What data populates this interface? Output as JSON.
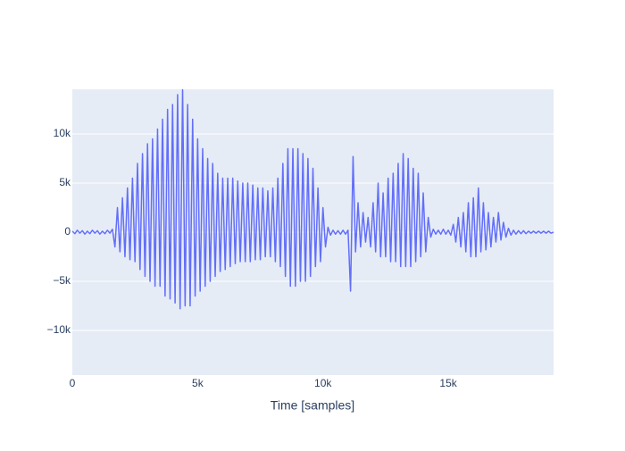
{
  "chart_data": {
    "type": "line",
    "x_label": "Time [samples]",
    "xlim": [
      0,
      19200
    ],
    "ylim": [
      -14545,
      14545
    ],
    "xticks": [
      0,
      {
        "value": 5000,
        "label": "5k"
      },
      {
        "value": 10000,
        "label": "10k"
      },
      {
        "value": 15000,
        "label": "15k"
      }
    ],
    "yticks": [
      {
        "value": -10000,
        "label": "−10k"
      },
      {
        "value": -5000,
        "label": "−5k"
      },
      0,
      {
        "value": 5000,
        "label": "5k"
      },
      {
        "value": 10000,
        "label": "10k"
      }
    ],
    "grid": true,
    "series": [
      {
        "color": "#636efa",
        "x": [
          0,
          100,
          200,
          300,
          400,
          500,
          600,
          700,
          800,
          900,
          1000,
          1100,
          1200,
          1300,
          1400,
          1500,
          1600,
          1700,
          1800,
          1900,
          2000,
          2100,
          2200,
          2300,
          2400,
          2500,
          2600,
          2700,
          2800,
          2900,
          3000,
          3100,
          3200,
          3300,
          3400,
          3500,
          3600,
          3700,
          3800,
          3900,
          4000,
          4100,
          4200,
          4300,
          4400,
          4500,
          4600,
          4700,
          4800,
          4900,
          5000,
          5100,
          5200,
          5300,
          5400,
          5500,
          5600,
          5700,
          5800,
          5900,
          6000,
          6100,
          6200,
          6300,
          6400,
          6500,
          6600,
          6700,
          6800,
          6900,
          7000,
          7100,
          7200,
          7300,
          7400,
          7500,
          7600,
          7700,
          7800,
          7900,
          8000,
          8100,
          8200,
          8300,
          8400,
          8500,
          8600,
          8700,
          8800,
          8900,
          9000,
          9100,
          9200,
          9300,
          9400,
          9500,
          9600,
          9700,
          9800,
          9900,
          10000,
          10100,
          10200,
          10300,
          10400,
          10500,
          10600,
          10700,
          10800,
          10900,
          11000,
          11100,
          11200,
          11300,
          11400,
          11500,
          11600,
          11700,
          11800,
          11900,
          12000,
          12100,
          12200,
          12300,
          12400,
          12500,
          12600,
          12700,
          12800,
          12900,
          13000,
          13100,
          13200,
          13300,
          13400,
          13500,
          13600,
          13700,
          13800,
          13900,
          14000,
          14100,
          14200,
          14300,
          14400,
          14500,
          14600,
          14700,
          14800,
          14900,
          15000,
          15100,
          15200,
          15300,
          15400,
          15500,
          15600,
          15700,
          15800,
          15900,
          16000,
          16100,
          16200,
          16300,
          16400,
          16500,
          16600,
          16700,
          16800,
          16900,
          17000,
          17100,
          17200,
          17300,
          17400,
          17500,
          17600,
          17700,
          17800,
          17900,
          18000,
          18100,
          18200,
          18300,
          18400,
          18500,
          18600,
          18700,
          18800,
          18900,
          19000,
          19100,
          19200
        ],
        "values": [
          100,
          -150,
          200,
          -100,
          150,
          -200,
          100,
          -150,
          200,
          -100,
          150,
          -200,
          100,
          -150,
          200,
          -100,
          300,
          -1500,
          2500,
          -2000,
          3500,
          -2500,
          4500,
          -2800,
          5500,
          -3000,
          7000,
          -3800,
          8000,
          -4500,
          9000,
          -5000,
          9500,
          -5500,
          10500,
          -5500,
          11500,
          -6500,
          12500,
          -6800,
          13000,
          -7200,
          14000,
          -7800,
          14500,
          -7500,
          13000,
          -7500,
          11500,
          -6500,
          9500,
          -6000,
          8500,
          -5500,
          7500,
          -5000,
          7000,
          -4500,
          6000,
          -4000,
          5500,
          -3800,
          5500,
          -3500,
          5500,
          -3200,
          5200,
          -3000,
          5000,
          -3000,
          5000,
          -3000,
          4800,
          -2800,
          4500,
          -2800,
          4500,
          -2500,
          4200,
          -2500,
          4500,
          -3000,
          5500,
          -3500,
          7000,
          -4500,
          8500,
          -5500,
          8500,
          -5500,
          8500,
          -5000,
          8000,
          -5000,
          7500,
          -4500,
          6500,
          -3500,
          4500,
          -3000,
          2500,
          -1500,
          500,
          -300,
          200,
          -200,
          150,
          -200,
          200,
          -200,
          200,
          -6000,
          7700,
          -2000,
          3000,
          -1500,
          2000,
          -1000,
          1500,
          -1500,
          3000,
          -2000,
          5000,
          -2500,
          4000,
          -2500,
          5500,
          -3000,
          6000,
          -3000,
          7000,
          -3500,
          8000,
          -3500,
          7500,
          -3500,
          6500,
          -3000,
          6000,
          -2500,
          4000,
          -2000,
          1500,
          -500,
          300,
          -200,
          200,
          -200,
          300,
          -200,
          200,
          -300,
          800,
          -1000,
          1500,
          -1500,
          2000,
          -2000,
          3000,
          -2500,
          3500,
          -2500,
          4500,
          -2000,
          3000,
          -1800,
          2000,
          -1500,
          1500,
          -1000,
          2000,
          -800,
          1000,
          -500,
          400,
          -300,
          200,
          -200,
          150,
          -150,
          150,
          -150,
          100,
          -100,
          100,
          -100,
          100,
          -100,
          100,
          -100,
          100,
          -100,
          0
        ]
      }
    ]
  }
}
